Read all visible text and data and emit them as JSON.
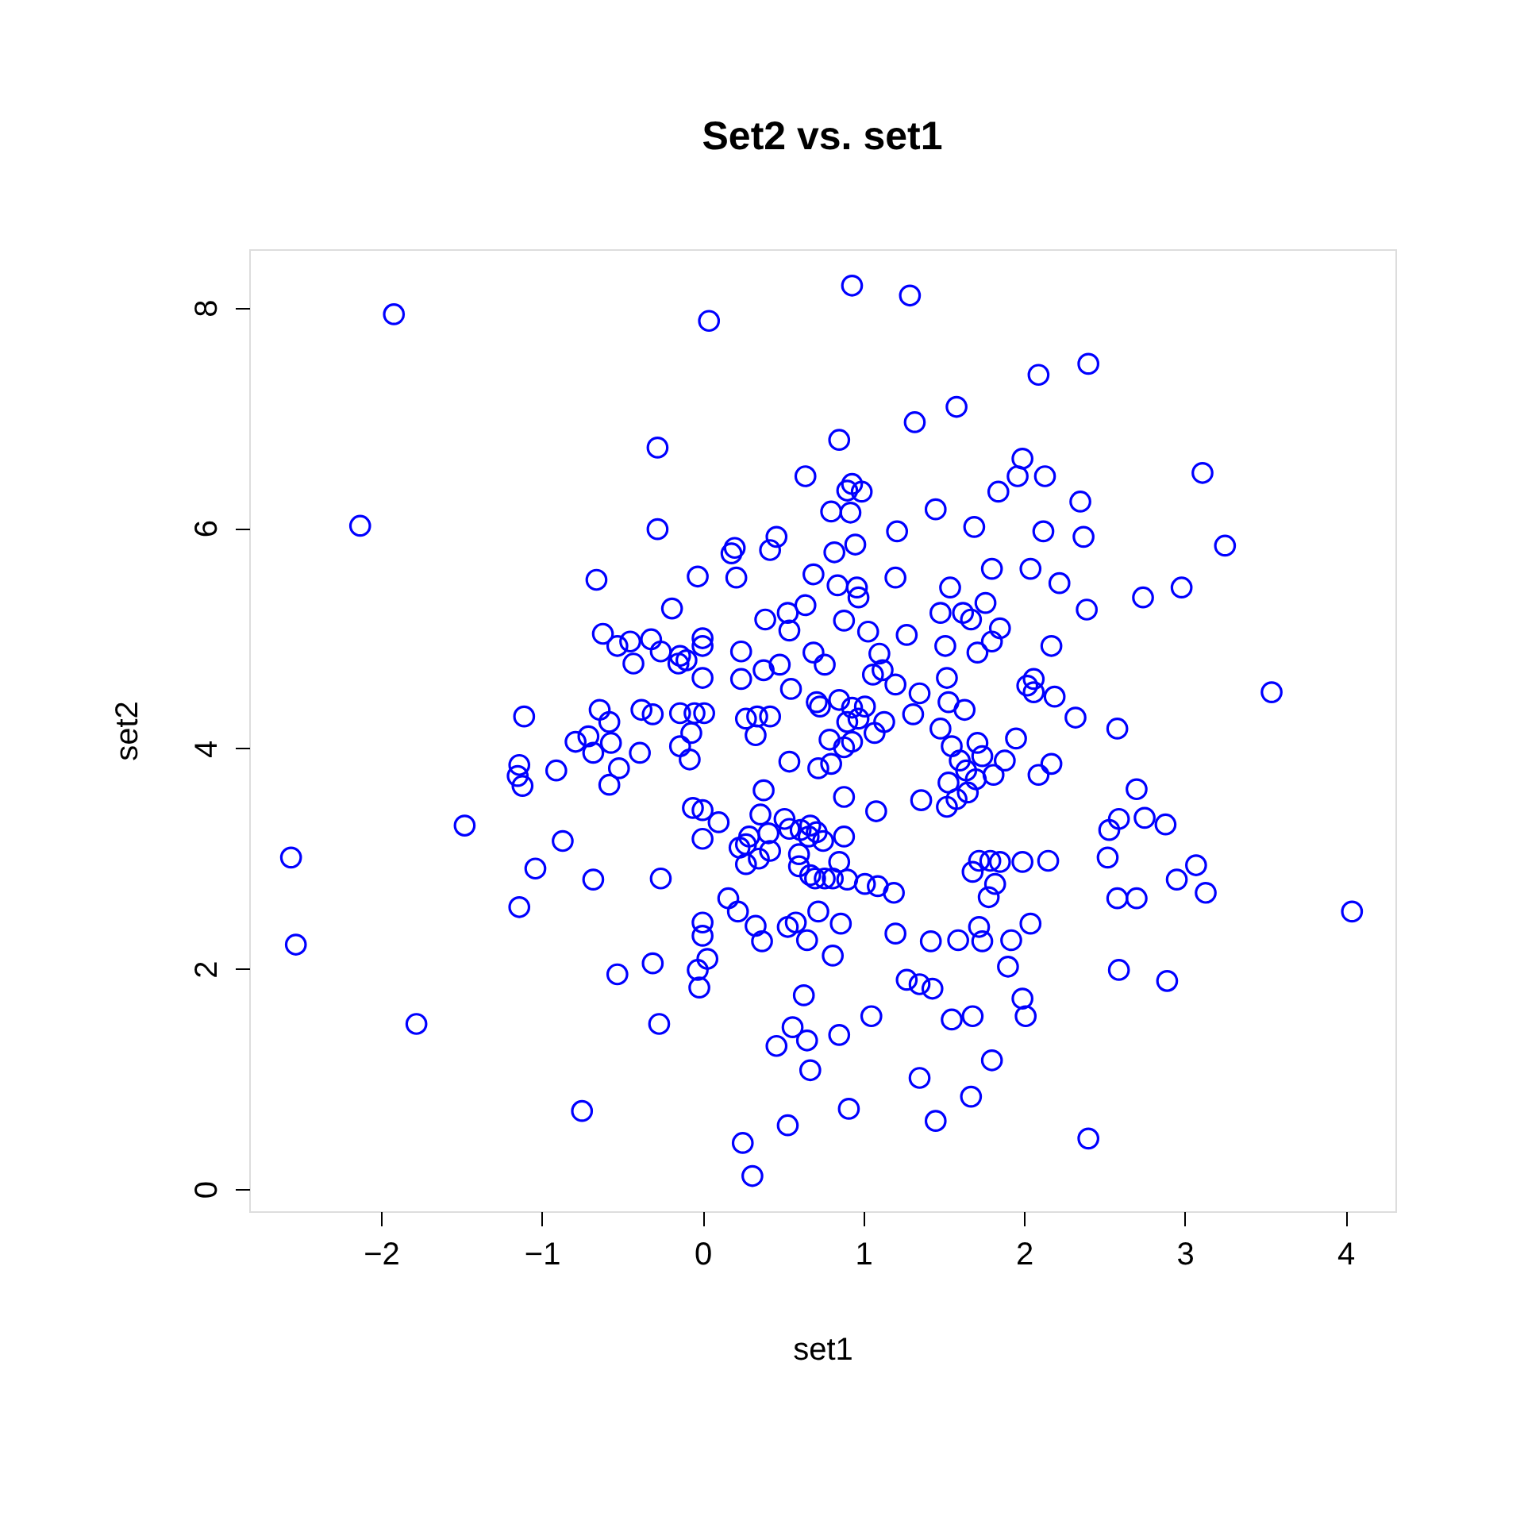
{
  "chart_data": {
    "type": "scatter",
    "title": "Set2 vs. set1",
    "xlabel": "set1",
    "ylabel": "set2",
    "xlim": [
      -2.82,
      4.31
    ],
    "ylim": [
      -0.2,
      8.53
    ],
    "xticks": [
      -2,
      -1,
      0,
      1,
      2,
      3,
      4
    ],
    "yticks": [
      0,
      2,
      4,
      6,
      8
    ],
    "grid": false,
    "series": [
      {
        "color": "#0000ff",
        "x": [
          -1.92,
          0.04,
          0.93,
          1.29,
          2.4,
          2.09,
          1.58,
          1.32,
          0.85,
          -0.28,
          3.11,
          0.64,
          2.13,
          1.96,
          1.99,
          1.45,
          2.35,
          0.93,
          0.9,
          0.99,
          0.8,
          0.92,
          -2.13,
          1.84,
          -0.28,
          2.12,
          1.69,
          1.21,
          0.95,
          2.37,
          3.25,
          0.46,
          0.18,
          0.2,
          0.42,
          0.82,
          2.22,
          2.04,
          1.8,
          0.69,
          1.2,
          -0.03,
          0.21,
          -0.66,
          0.84,
          0.96,
          0.97,
          1.54,
          2.74,
          2.98,
          2.39,
          1.48,
          1.62,
          -0.19,
          1.76,
          0.53,
          0.64,
          0.39,
          0.88,
          1.67,
          0.54,
          1.03,
          1.85,
          -0.62,
          -0.32,
          1.27,
          -0.45,
          0,
          0,
          -0.53,
          1.51,
          1.8,
          1.71,
          2.17,
          0.24,
          1.1,
          0.69,
          -0.26,
          -0.14,
          -0.1,
          -0.15,
          -0.43,
          0.48,
          0.76,
          1.12,
          0.38,
          0.24,
          0,
          1.52,
          1.2,
          1.06,
          2.06,
          2.02,
          0.55,
          3.54,
          2.06,
          2.19,
          1.35,
          0.85,
          0.71,
          0.73,
          1.01,
          1.63,
          1.53,
          0.93,
          -0.64,
          -0.38,
          -0.31,
          -1.11,
          -0.14,
          -0.05,
          0.01,
          0.27,
          0.34,
          0.42,
          0.97,
          0.9,
          1.31,
          1.13,
          2.32,
          -0.58,
          1.48,
          2.58,
          -0.07,
          0.33,
          1.07,
          0.79,
          1.95,
          0.93,
          1.71,
          1.55,
          -0.71,
          -0.79,
          -0.57,
          0.88,
          -0.14,
          -0.39,
          -0.68,
          -0.08,
          1.74,
          1.88,
          0.54,
          0.8,
          2.17,
          -1.14,
          1.6,
          -0.91,
          0.72,
          1.64,
          1.81,
          2.09,
          1.7,
          -1.15,
          -1.12,
          -0.58,
          -0.52,
          2.7,
          1.53,
          1.58,
          1.65,
          0.38,
          1.36,
          0.88,
          1.52,
          0,
          -0.06,
          0.1,
          0.36,
          1.08,
          -1.48,
          0.51,
          0.67,
          2.59,
          2.75,
          2.88,
          0.61,
          0.66,
          0.88,
          0.54,
          0.71,
          2.53,
          0.41,
          0.29,
          0,
          0.27,
          0.75,
          0.42,
          0.35,
          0.23,
          -0.87,
          0.6,
          2.52,
          -2.56,
          3.07,
          0.27,
          0.6,
          0.85,
          1.68,
          1.72,
          1.79,
          1.85,
          2.15,
          1.99,
          -1.04,
          0.67,
          0.7,
          0.76,
          0.81,
          0.9,
          2.95,
          -0.68,
          -0.26,
          1.01,
          1.09,
          1.82,
          1.19,
          3.13,
          1.78,
          2.58,
          2.7,
          0.16,
          0.22,
          0.72,
          4.04,
          -1.14,
          0.33,
          0.53,
          0.58,
          0.86,
          0,
          2.04,
          0,
          1.2,
          1.42,
          1.72,
          1.74,
          0.37,
          1.59,
          0.65,
          1.92,
          -2.53,
          0.81,
          0.03,
          -0.31,
          1.9,
          2.59,
          -0.03,
          1.27,
          -0.53,
          1.35,
          2.89,
          1.43,
          -0.02,
          0.63,
          1.99,
          1.05,
          1.68,
          2.01,
          1.55,
          -1.78,
          -0.27,
          0.56,
          0.85,
          0.46,
          0.65,
          1.8,
          0.67,
          1.35,
          1.67,
          -0.75,
          0.91,
          1.45,
          0.53,
          2.4,
          0.25,
          0.31
        ],
        "values": [
          7.94,
          7.88,
          8.2,
          8.11,
          7.49,
          7.39,
          7.1,
          6.96,
          6.8,
          6.73,
          6.5,
          6.47,
          6.47,
          6.47,
          6.63,
          6.17,
          6.24,
          6.4,
          6.34,
          6.33,
          6.15,
          6.14,
          6.02,
          6.33,
          5.99,
          5.97,
          6.01,
          5.97,
          5.85,
          5.92,
          5.84,
          5.92,
          5.77,
          5.82,
          5.8,
          5.78,
          5.5,
          5.63,
          5.63,
          5.58,
          5.55,
          5.56,
          5.55,
          5.53,
          5.48,
          5.46,
          5.37,
          5.46,
          5.37,
          5.46,
          5.26,
          5.23,
          5.23,
          5.27,
          5.32,
          5.23,
          5.3,
          5.17,
          5.16,
          5.17,
          5.07,
          5.06,
          5.09,
          5.04,
          4.99,
          5.03,
          4.97,
          5.0,
          4.93,
          4.93,
          4.93,
          4.97,
          4.87,
          4.93,
          4.88,
          4.86,
          4.87,
          4.88,
          4.84,
          4.8,
          4.77,
          4.77,
          4.76,
          4.76,
          4.71,
          4.71,
          4.63,
          4.64,
          4.64,
          4.58,
          4.67,
          4.63,
          4.57,
          4.54,
          4.51,
          4.51,
          4.47,
          4.5,
          4.44,
          4.42,
          4.38,
          4.38,
          4.35,
          4.42,
          4.37,
          4.35,
          4.35,
          4.31,
          4.29,
          4.32,
          4.32,
          4.32,
          4.27,
          4.29,
          4.29,
          4.27,
          4.24,
          4.31,
          4.24,
          4.28,
          4.24,
          4.18,
          4.18,
          4.14,
          4.12,
          4.14,
          4.08,
          4.09,
          4.06,
          4.05,
          4.02,
          4.11,
          4.06,
          4.05,
          4.01,
          4.02,
          3.96,
          3.96,
          3.9,
          3.93,
          3.89,
          3.88,
          3.86,
          3.86,
          3.85,
          3.89,
          3.8,
          3.82,
          3.8,
          3.76,
          3.76,
          3.72,
          3.75,
          3.66,
          3.67,
          3.82,
          3.63,
          3.69,
          3.54,
          3.6,
          3.62,
          3.53,
          3.56,
          3.47,
          3.44,
          3.46,
          3.33,
          3.4,
          3.43,
          3.3,
          3.36,
          3.3,
          3.36,
          3.37,
          3.31,
          3.26,
          3.2,
          3.2,
          3.27,
          3.24,
          3.26,
          3.23,
          3.2,
          3.18,
          3.13,
          3.16,
          3.07,
          3.0,
          3.1,
          3.16,
          3.04,
          3.01,
          3.01,
          2.94,
          2.95,
          2.93,
          2.97,
          2.88,
          2.98,
          2.98,
          2.97,
          2.98,
          2.97,
          2.91,
          2.85,
          2.82,
          2.82,
          2.82,
          2.81,
          2.81,
          2.81,
          2.82,
          2.77,
          2.75,
          2.77,
          2.69,
          2.69,
          2.65,
          2.64,
          2.64,
          2.64,
          2.52,
          2.52,
          2.52,
          2.56,
          2.39,
          2.38,
          2.42,
          2.41,
          2.42,
          2.41,
          2.3,
          2.32,
          2.25,
          2.38,
          2.25,
          2.25,
          2.26,
          2.26,
          2.26,
          2.22,
          2.12,
          2.09,
          2.05,
          2.02,
          1.99,
          1.99,
          1.9,
          1.95,
          1.86,
          1.89,
          1.82,
          1.83,
          1.76,
          1.73,
          1.57,
          1.57,
          1.57,
          1.54,
          1.5,
          1.5,
          1.47,
          1.4,
          1.3,
          1.35,
          1.17,
          1.08,
          1.01,
          0.84,
          0.71,
          0.73,
          0.62,
          0.58,
          0.46,
          0.42,
          0.12
        ]
      }
    ]
  }
}
